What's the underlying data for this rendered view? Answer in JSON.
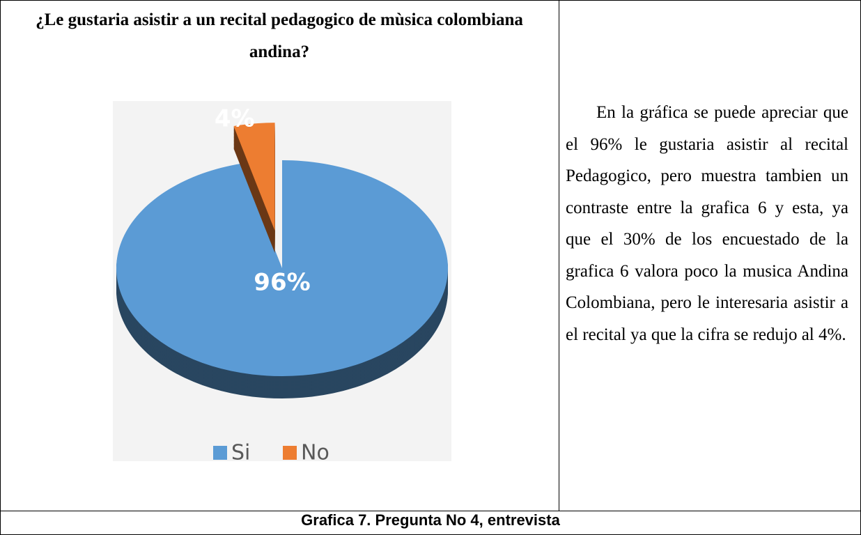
{
  "chart_data": {
    "type": "pie",
    "title": "¿Le gustaria asistir a un recital pedagogico de mùsica colombiana andina?",
    "categories": [
      "Si",
      "No"
    ],
    "values": [
      96,
      4
    ],
    "value_labels": [
      "96%",
      "4%"
    ],
    "colors": [
      "#5b9bd5",
      "#ed7d31"
    ],
    "legend": "bottom"
  },
  "paragraph": "En la gráfica se puede apreciar que el 96%  le gustaria asistir al recital Pedagogico, pero muestra tambien un contraste entre la grafica 6 y esta, ya que el 30% de los encuestado de la grafica 6 valora poco la musica Andina Colombiana, pero le interesaria asistir a el recital ya que la cifra se redujo al 4%.",
  "caption": "Grafica 7. Pregunta No 4, entrevista"
}
